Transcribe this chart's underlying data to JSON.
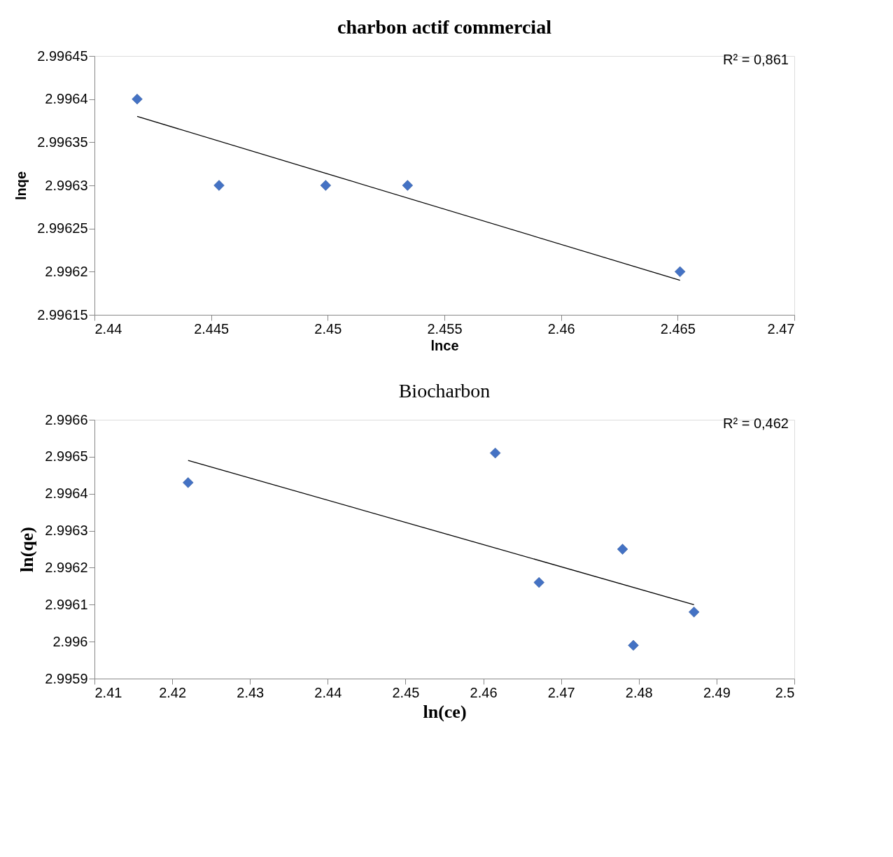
{
  "chart_data": [
    {
      "type": "scatter",
      "title": "charbon actif commercial",
      "xlabel": "lnce",
      "ylabel": "lnqe",
      "xlim": [
        2.44,
        2.47
      ],
      "xticks": [
        2.44,
        2.445,
        2.45,
        2.455,
        2.46,
        2.465,
        2.47
      ],
      "ylim": [
        2.99615,
        2.99645
      ],
      "yticks": [
        2.99615,
        2.9962,
        2.99625,
        2.9963,
        2.99635,
        2.9964,
        2.99645
      ],
      "grid": false,
      "annotations": [
        "R² = 0,861"
      ],
      "series": [
        {
          "color": "#4472c4",
          "marker": "diamond",
          "x": [
            2.44183,
            2.44534,
            2.44991,
            2.45342,
            2.4651
          ],
          "values": [
            2.9964,
            2.9963,
            2.9963,
            2.9963,
            2.9962
          ]
        },
        {
          "type": "line",
          "color": "#000000",
          "line_style": "solid",
          "x": [
            2.44183,
            2.4651
          ],
          "values": [
            2.99638,
            2.99619
          ]
        }
      ]
    },
    {
      "type": "scatter",
      "title": "Biocharbon",
      "xlabel": "ln(ce)",
      "ylabel": "ln(qe)",
      "xlim": [
        2.41,
        2.5
      ],
      "xticks": [
        2.41,
        2.42,
        2.43,
        2.44,
        2.45,
        2.46,
        2.47,
        2.48,
        2.49,
        2.5
      ],
      "ylim": [
        2.9959,
        2.9966
      ],
      "yticks": [
        2.9959,
        2.996,
        2.9961,
        2.9962,
        2.9963,
        2.9964,
        2.9965,
        2.9966
      ],
      "grid": false,
      "annotations": [
        "R² = 0,462"
      ],
      "series": [
        {
          "color": "#4472c4",
          "marker": "diamond",
          "x": [
            2.42204,
            2.46154,
            2.47791,
            2.46717,
            2.4871,
            2.4793
          ],
          "values": [
            2.99643,
            2.99651,
            2.99625,
            2.99616,
            2.99608,
            2.99599
          ]
        },
        {
          "type": "line",
          "color": "#000000",
          "line_style": "solid",
          "x": [
            2.42204,
            2.4871
          ],
          "values": [
            2.99649,
            2.9961
          ]
        }
      ]
    }
  ]
}
